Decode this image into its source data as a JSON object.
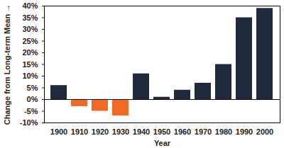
{
  "chart_data": {
    "type": "bar",
    "x_label": "Year",
    "y_label": "Change from Long-term Mean",
    "categories": [
      "1900",
      "1910",
      "1920",
      "1930",
      "1940",
      "1950",
      "1960",
      "1970",
      "1980",
      "1990",
      "2000"
    ],
    "values": [
      6,
      -3,
      -5,
      -7,
      11,
      1,
      4,
      7,
      15,
      35,
      39
    ],
    "colors": [
      "#1f2a3d",
      "#f26a21",
      "#f26a21",
      "#f26a21",
      "#1f2a3d",
      "#1f2a3d",
      "#1f2a3d",
      "#1f2a3d",
      "#1f2a3d",
      "#1f2a3d",
      "#1f2a3d"
    ],
    "ylim": [
      -10,
      40
    ],
    "yticks": [
      {
        "value": -10,
        "label": "-10%"
      },
      {
        "value": -5,
        "label": "-5%"
      },
      {
        "value": 0,
        "label": "0%"
      },
      {
        "value": 5,
        "label": "5%"
      },
      {
        "value": 10,
        "label": "10%"
      },
      {
        "value": 15,
        "label": "15%"
      },
      {
        "value": 20,
        "label": "20%"
      },
      {
        "value": 25,
        "label": "25%"
      },
      {
        "value": 30,
        "label": "30%"
      },
      {
        "value": 35,
        "label": "35%"
      },
      {
        "value": 40,
        "label": "40%"
      }
    ],
    "grid": false
  }
}
